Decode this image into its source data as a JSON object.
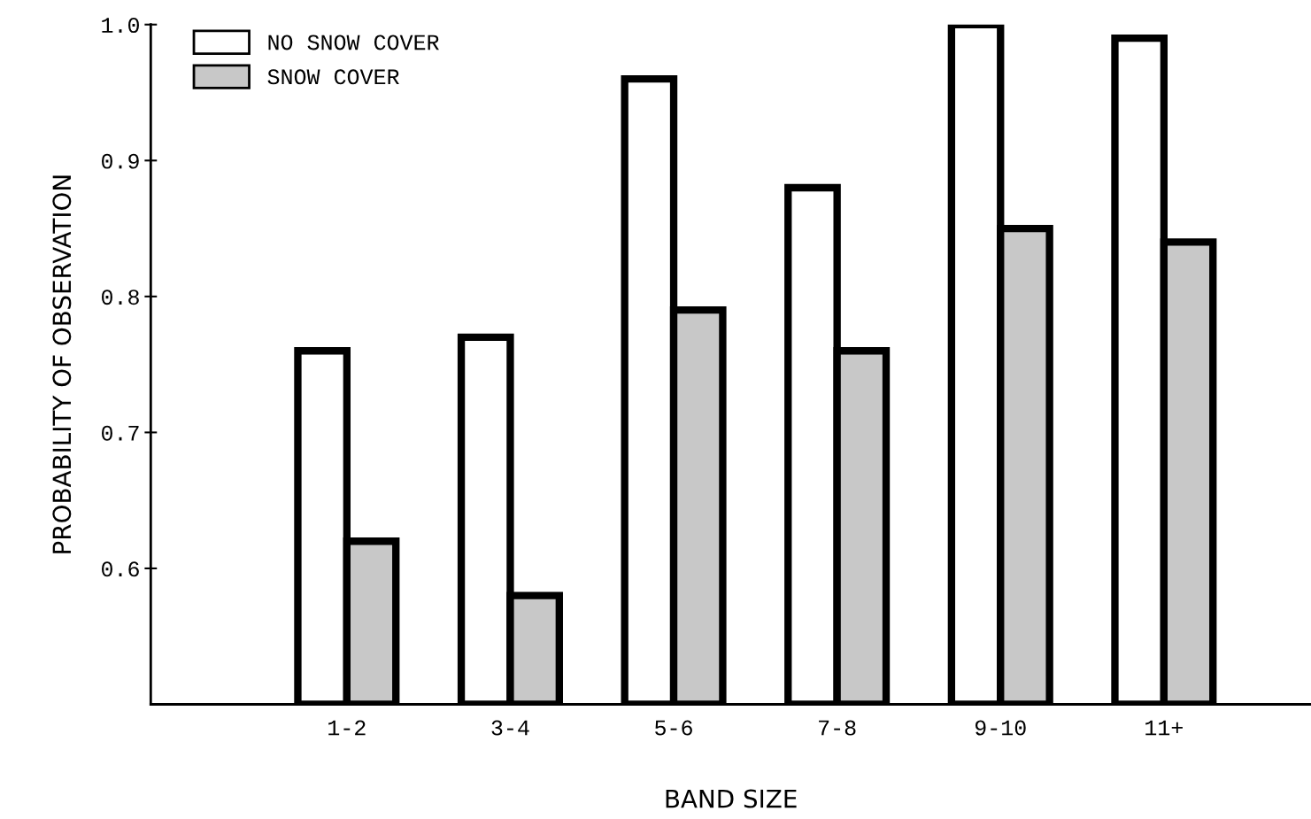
{
  "chart_data": {
    "type": "bar",
    "xlabel": "BAND SIZE",
    "ylabel": "PROBABILITY OF OBSERVATION",
    "categories": [
      "1-2",
      "3-4",
      "5-6",
      "7-8",
      "9-10",
      "11+"
    ],
    "series": [
      {
        "name": "NO SNOW COVER",
        "color": "#ffffff",
        "values": [
          0.76,
          0.77,
          0.96,
          0.88,
          1.0,
          0.99
        ]
      },
      {
        "name": "SNOW COVER",
        "color": "#c8c8c8",
        "values": [
          0.62,
          0.58,
          0.79,
          0.76,
          0.85,
          0.84
        ]
      }
    ],
    "ylim": [
      0.5,
      1.0
    ],
    "yticks": [
      0.6,
      0.7,
      0.8,
      0.9,
      {
        "value": 1.0,
        "label": "1.0"
      }
    ],
    "grid": false,
    "legend": "top left"
  }
}
